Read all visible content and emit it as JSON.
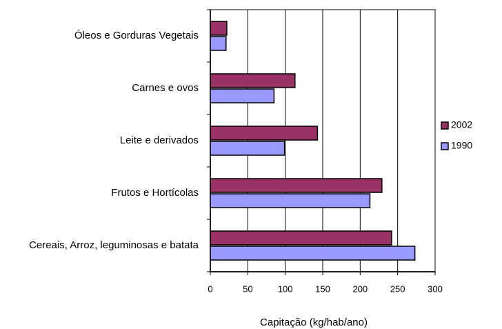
{
  "chart_data": {
    "type": "hbar",
    "x_label": "Capitação (kg/hab/ano)",
    "categories": [
      "Óleos e Gorduras Vegetais",
      "Carnes e ovos",
      "Leite e derivados",
      "Frutos e Hortícolas",
      "Cereais, Arroz, leguminosas e batata"
    ],
    "series": [
      {
        "name": "2002",
        "color": "#993366",
        "values": [
          22,
          113,
          143,
          229,
          242
        ]
      },
      {
        "name": "1990",
        "color": "#9999ff",
        "values": [
          21,
          85,
          99,
          213,
          273
        ]
      }
    ],
    "xlim": [
      0,
      300
    ],
    "xticks": [
      0,
      50,
      100,
      150,
      200,
      250,
      300
    ],
    "grid": true,
    "legend": "right"
  }
}
